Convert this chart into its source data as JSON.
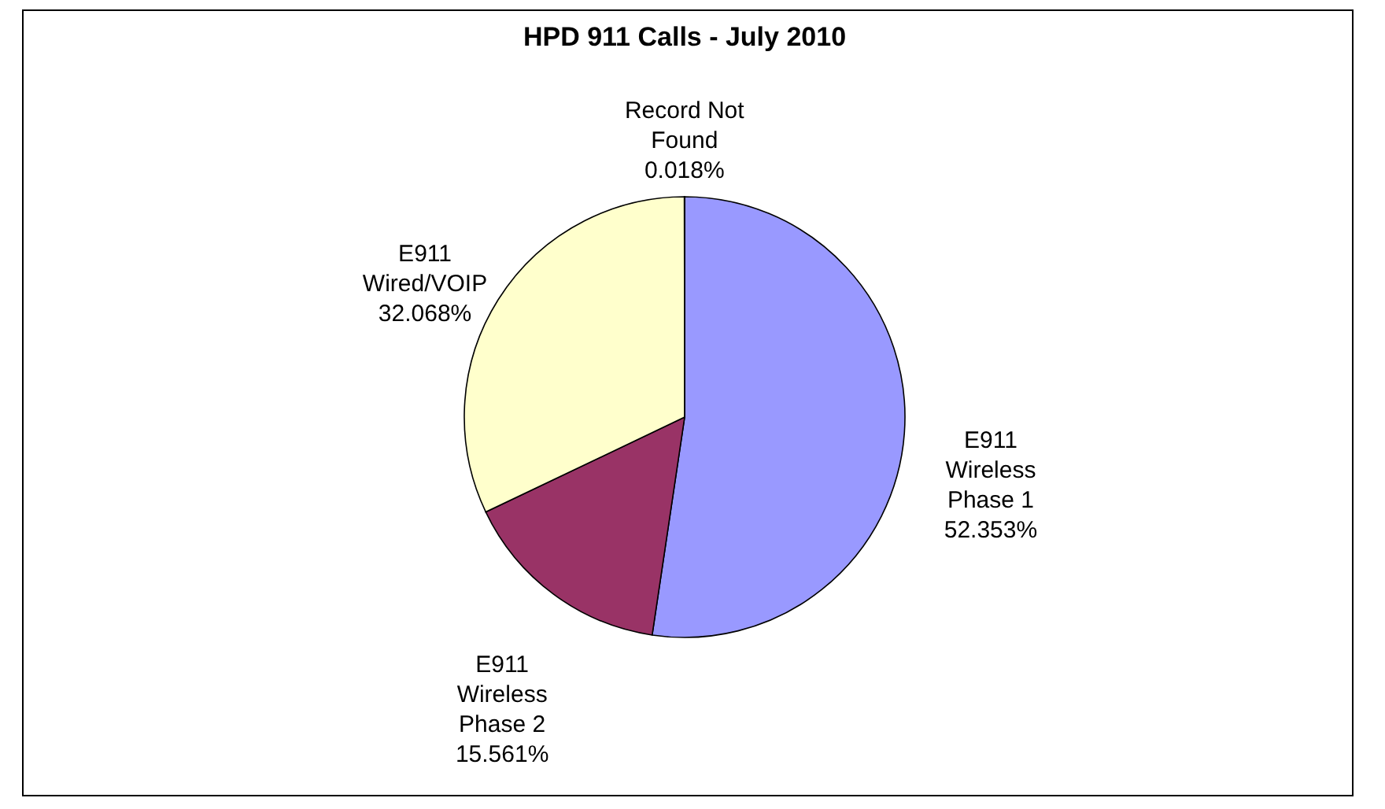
{
  "chart_data": {
    "type": "pie",
    "title": "HPD 911 Calls - July 2010",
    "categories": [
      "E911 Wireless Phase 1",
      "E911 Wireless Phase 2",
      "E911 Wired/VOIP",
      "Record Not Found"
    ],
    "values": [
      52.353,
      15.561,
      32.068,
      0.018
    ],
    "colors": [
      "#9999ff",
      "#993366",
      "#ffffcc",
      "#ccffff"
    ],
    "value_labels": [
      "52.353%",
      "15.561%",
      "32.068%",
      "0.018%"
    ]
  }
}
